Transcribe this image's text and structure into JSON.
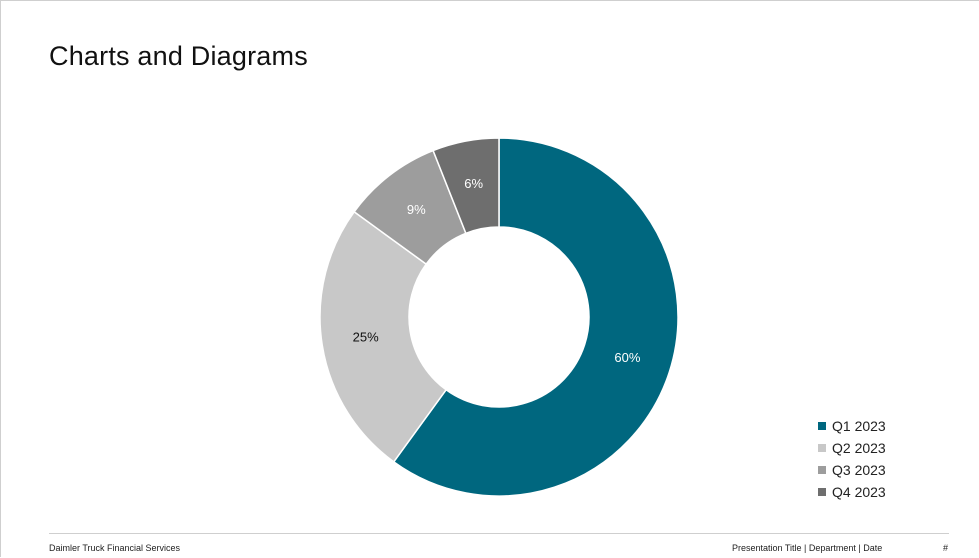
{
  "slide": {
    "title": "Charts and Diagrams"
  },
  "footer": {
    "company": "Daimler Truck Financial Services",
    "meta": "Presentation Title | Department | Date",
    "page": "#"
  },
  "chart_data": {
    "type": "pie",
    "subtype": "donut",
    "categories": [
      "Q1 2023",
      "Q2 2023",
      "Q3 2023",
      "Q4 2023"
    ],
    "values": [
      60,
      25,
      9,
      6
    ],
    "labels": [
      "60%",
      "25%",
      "9%",
      "6%"
    ],
    "colors": [
      "#00677f",
      "#c8c8c8",
      "#9d9d9d",
      "#6e6e6e"
    ],
    "label_colors": [
      "#ffffff",
      "#111111",
      "#ffffff",
      "#ffffff"
    ],
    "legend_position": "bottom-right"
  }
}
